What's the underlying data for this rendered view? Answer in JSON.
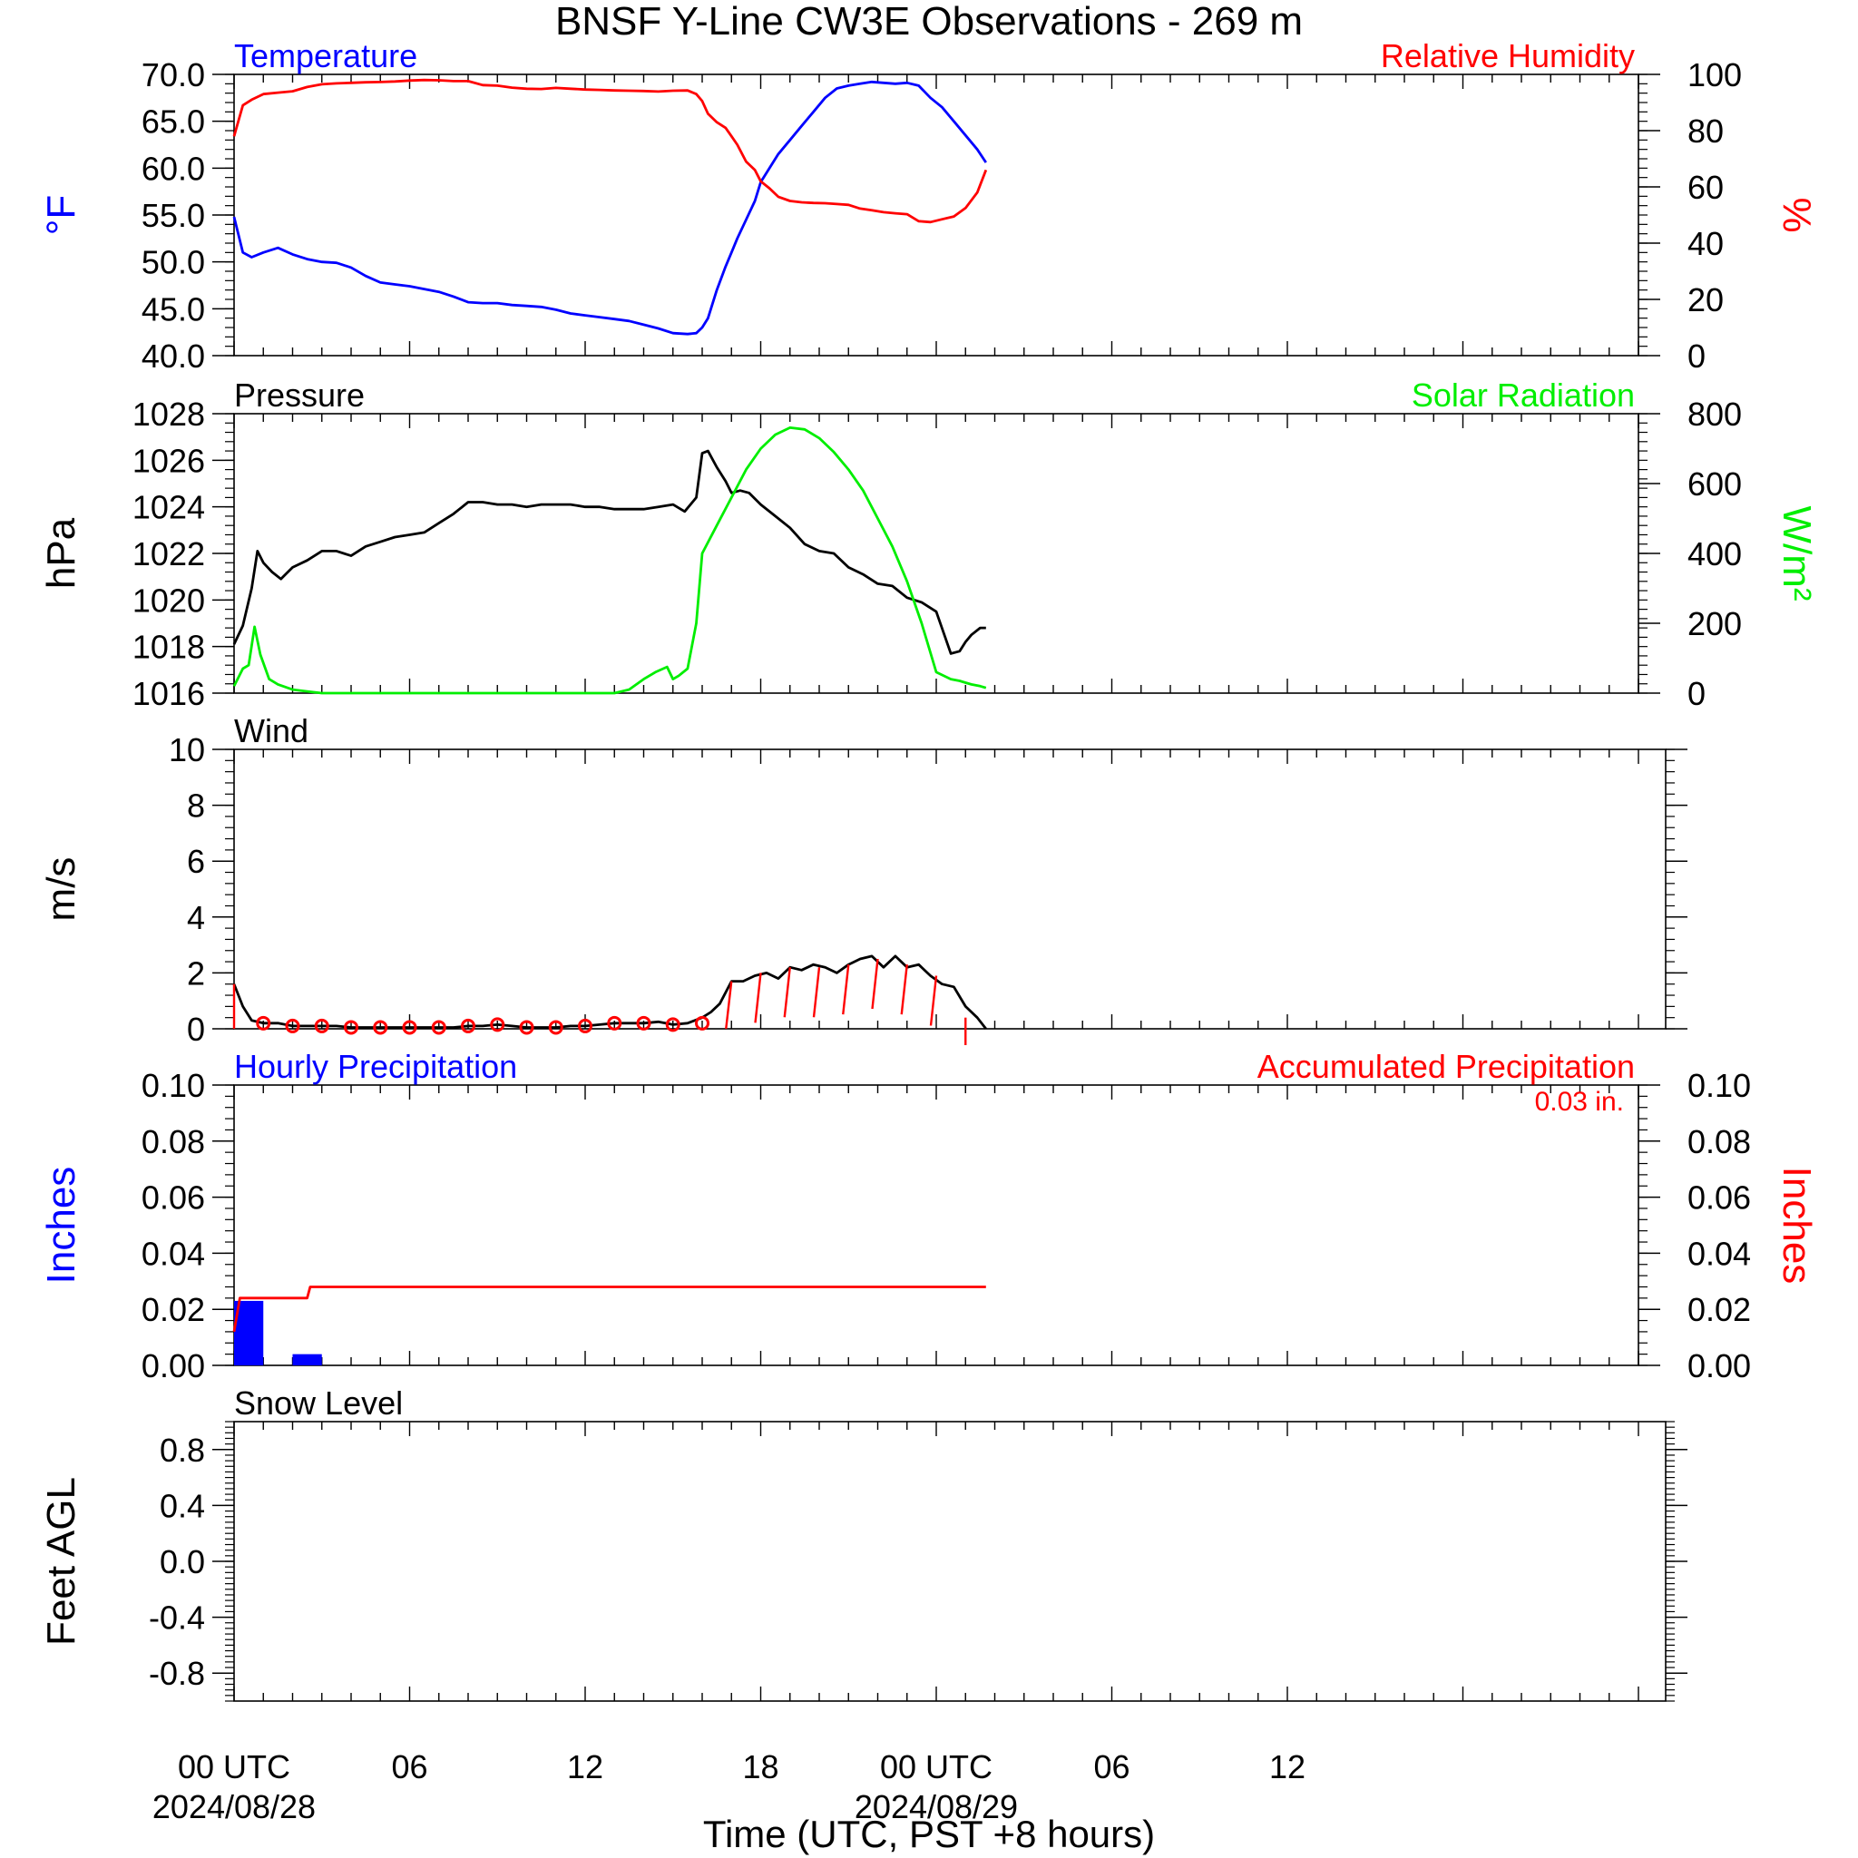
{
  "title": "BNSF Y-Line CW3E Observations - 269 m",
  "colors": {
    "temperature": "#0000ff",
    "humidity": "#ff0000",
    "pressure": "#000000",
    "solar": "#00ee00",
    "wind": "#000000",
    "barb": "#ff0000",
    "hourly_precip": "#0000ff",
    "accum_precip": "#ff0000"
  },
  "x_axis": {
    "label": "Time (UTC, PST +8 hours)",
    "range_hours": [
      0,
      48
    ],
    "ticks": [
      {
        "h": 0,
        "line1": "00 UTC",
        "line2": "2024/08/28"
      },
      {
        "h": 6,
        "line1": "06",
        "line2": ""
      },
      {
        "h": 12,
        "line1": "12",
        "line2": ""
      },
      {
        "h": 18,
        "line1": "18",
        "line2": ""
      },
      {
        "h": 24,
        "line1": "00 UTC",
        "line2": "2024/08/29"
      },
      {
        "h": 30,
        "line1": "06",
        "line2": ""
      },
      {
        "h": 36,
        "line1": "12",
        "line2": ""
      }
    ]
  },
  "chart_data": [
    {
      "panel": "temperature_humidity",
      "type": "line",
      "left_title": "Temperature",
      "right_title": "Relative Humidity",
      "ylabel_left": "°F",
      "ylabel_right": "%",
      "ylim_left": [
        40,
        70
      ],
      "ylim_right": [
        0,
        100
      ],
      "yticks_left": [
        "40.0",
        "45.0",
        "50.0",
        "55.0",
        "60.0",
        "65.0",
        "70.0"
      ],
      "yticks_right": [
        "0",
        "20",
        "40",
        "60",
        "80",
        "100"
      ],
      "series": [
        {
          "name": "Temperature",
          "axis": "left",
          "color_key": "temperature",
          "x": [
            0,
            0.3,
            0.6,
            1,
            1.5,
            2,
            2.5,
            3,
            3.5,
            4,
            4.5,
            5,
            5.5,
            6,
            6.5,
            7,
            7.5,
            8,
            8.5,
            9,
            9.5,
            10,
            10.5,
            11,
            11.5,
            12,
            12.5,
            13,
            13.5,
            14,
            14.5,
            15,
            15.5,
            15.8,
            16,
            16.2,
            16.5,
            16.8,
            17,
            17.2,
            17.5,
            17.8,
            18,
            18.3,
            18.6,
            19,
            19.4,
            19.8,
            20.2,
            20.6,
            21,
            21.4,
            21.8,
            22.2,
            22.6,
            23,
            23.4,
            23.8,
            24.2,
            24.6,
            25,
            25.4,
            25.7
          ],
          "values": [
            54.8,
            51,
            50.5,
            51,
            51.5,
            50.8,
            50.3,
            50,
            49.9,
            49.4,
            48.5,
            47.8,
            47.6,
            47.4,
            47.1,
            46.8,
            46.3,
            45.7,
            45.6,
            45.6,
            45.4,
            45.3,
            45.2,
            44.9,
            44.5,
            44.3,
            44.1,
            43.9,
            43.7,
            43.3,
            42.9,
            42.4,
            42.3,
            42.4,
            43,
            44,
            47,
            49.5,
            51,
            52.5,
            54.5,
            56.5,
            58.5,
            60,
            61.5,
            63,
            64.5,
            66,
            67.5,
            68.5,
            68.8,
            69,
            69.2,
            69.1,
            69,
            69.1,
            68.8,
            67.5,
            66.5,
            65,
            63.5,
            62,
            60.6
          ]
        },
        {
          "name": "Relative Humidity",
          "axis": "right",
          "color_key": "humidity",
          "x": [
            0,
            0.3,
            0.6,
            1,
            1.5,
            2,
            2.5,
            3,
            3.5,
            4,
            4.5,
            5,
            5.5,
            6,
            6.5,
            7,
            7.5,
            8,
            8.5,
            9,
            9.5,
            10,
            10.5,
            11,
            11.5,
            12,
            12.5,
            13,
            13.5,
            14,
            14.5,
            15,
            15.5,
            15.8,
            16,
            16.2,
            16.5,
            16.8,
            17,
            17.2,
            17.5,
            17.8,
            18,
            18.3,
            18.6,
            19,
            19.4,
            19.8,
            20.2,
            20.6,
            21,
            21.4,
            21.8,
            22.2,
            22.6,
            23,
            23.4,
            23.8,
            24.2,
            24.6,
            25,
            25.4,
            25.7
          ],
          "values": [
            78,
            89,
            91,
            93,
            93.5,
            94,
            95.5,
            96.5,
            96.8,
            97,
            97.2,
            97.3,
            97.5,
            97.8,
            98,
            97.9,
            97.6,
            97.6,
            96.2,
            96,
            95.3,
            94.9,
            94.8,
            95.2,
            94.9,
            94.6,
            94.5,
            94.3,
            94.2,
            94.1,
            93.9,
            94.2,
            94.3,
            93,
            90.5,
            86,
            83,
            81,
            78,
            75,
            69,
            66,
            62,
            59.5,
            56.5,
            55,
            54.5,
            54.3,
            54.2,
            53.9,
            53.6,
            52.3,
            51.7,
            51,
            50.6,
            50.3,
            47.8,
            47.5,
            48.5,
            49.5,
            52.5,
            58,
            66
          ]
        }
      ]
    },
    {
      "panel": "pressure_solar",
      "type": "line",
      "left_title": "Pressure",
      "right_title": "Solar Radiation",
      "ylabel_left": "hPa",
      "ylabel_right": "W/m²",
      "ylim_left": [
        1016,
        1028
      ],
      "ylim_right": [
        0,
        800
      ],
      "yticks_left": [
        "1016",
        "1018",
        "1020",
        "1022",
        "1024",
        "1026",
        "1028"
      ],
      "yticks_right": [
        "0",
        "200",
        "400",
        "600",
        "800"
      ],
      "series": [
        {
          "name": "Pressure",
          "axis": "left",
          "color_key": "pressure",
          "x": [
            0,
            0.3,
            0.6,
            0.8,
            1,
            1.3,
            1.6,
            2,
            2.5,
            3,
            3.5,
            4,
            4.5,
            5,
            5.5,
            6,
            6.5,
            7,
            7.5,
            8,
            8.5,
            9,
            9.5,
            10,
            10.5,
            11,
            11.5,
            12,
            12.5,
            13,
            13.5,
            14,
            14.5,
            15,
            15.4,
            15.8,
            16,
            16.2,
            16.5,
            16.8,
            17,
            17.3,
            17.6,
            18,
            18.5,
            19,
            19.5,
            20,
            20.5,
            21,
            21.5,
            22,
            22.5,
            23,
            23.5,
            24,
            24.5,
            24.8,
            25,
            25.2,
            25.5,
            25.7
          ],
          "values": [
            1018.1,
            1018.9,
            1020.5,
            1022.1,
            1021.6,
            1021.2,
            1020.9,
            1021.4,
            1021.7,
            1022.1,
            1022.1,
            1021.9,
            1022.3,
            1022.5,
            1022.7,
            1022.8,
            1022.9,
            1023.3,
            1023.7,
            1024.2,
            1024.2,
            1024.1,
            1024.1,
            1024.0,
            1024.1,
            1024.1,
            1024.1,
            1024.0,
            1024.0,
            1023.9,
            1023.9,
            1023.9,
            1024.0,
            1024.1,
            1023.8,
            1024.4,
            1026.3,
            1026.4,
            1025.7,
            1025.1,
            1024.6,
            1024.7,
            1024.6,
            1024.1,
            1023.6,
            1023.1,
            1022.4,
            1022.1,
            1022.0,
            1021.4,
            1021.1,
            1020.7,
            1020.6,
            1020.1,
            1019.9,
            1019.5,
            1017.7,
            1017.8,
            1018.2,
            1018.5,
            1018.8,
            1018.8
          ]
        },
        {
          "name": "Solar Radiation",
          "axis": "right",
          "color_key": "solar",
          "x": [
            0,
            0.3,
            0.5,
            0.7,
            0.9,
            1.2,
            1.5,
            2,
            2.5,
            3,
            4,
            5,
            6,
            7,
            8,
            9,
            10,
            11,
            12,
            13,
            13.5,
            14,
            14.4,
            14.8,
            15,
            15.2,
            15.5,
            15.8,
            16,
            16.5,
            17,
            17.5,
            18,
            18.5,
            19,
            19.5,
            20,
            20.5,
            21,
            21.5,
            22,
            22.5,
            23,
            23.5,
            24,
            24.5,
            24.8,
            25,
            25.2,
            25.5,
            25.7
          ],
          "values": [
            20,
            70,
            80,
            190,
            110,
            40,
            25,
            10,
            5,
            0,
            0,
            0,
            0,
            0,
            0,
            0,
            0,
            0,
            0,
            0,
            10,
            40,
            60,
            75,
            40,
            50,
            70,
            200,
            400,
            480,
            560,
            640,
            700,
            740,
            760,
            755,
            730,
            690,
            640,
            580,
            500,
            420,
            320,
            200,
            60,
            40,
            35,
            30,
            25,
            20,
            15
          ]
        }
      ]
    },
    {
      "panel": "wind",
      "type": "line",
      "left_title": "Wind",
      "ylabel_left": "m/s",
      "ylim_left": [
        0,
        10
      ],
      "yticks_left": [
        "0",
        "2",
        "4",
        "6",
        "8",
        "10"
      ],
      "series": [
        {
          "name": "Wind",
          "axis": "left",
          "color_key": "wind",
          "x": [
            0,
            0.3,
            0.6,
            1,
            1.5,
            2,
            2.5,
            3,
            3.5,
            4,
            4.5,
            5,
            5.5,
            6,
            6.5,
            7,
            7.5,
            8,
            8.5,
            9,
            9.5,
            10,
            10.5,
            11,
            11.5,
            12,
            12.5,
            13,
            13.5,
            14,
            14.5,
            15,
            15.5,
            16,
            16.3,
            16.6,
            17,
            17.4,
            17.8,
            18.2,
            18.6,
            19,
            19.4,
            19.8,
            20.2,
            20.6,
            21,
            21.4,
            21.8,
            22.2,
            22.6,
            23,
            23.4,
            23.8,
            24.2,
            24.6,
            25,
            25.4,
            25.7
          ],
          "values": [
            1.6,
            0.8,
            0.3,
            0.2,
            0.2,
            0.1,
            0.1,
            0.1,
            0.1,
            0.05,
            0.05,
            0.05,
            0.05,
            0.05,
            0.05,
            0.05,
            0.05,
            0.1,
            0.1,
            0.15,
            0.1,
            0.05,
            0.05,
            0.05,
            0.1,
            0.1,
            0.15,
            0.2,
            0.2,
            0.2,
            0.25,
            0.15,
            0.2,
            0.4,
            0.6,
            0.9,
            1.7,
            1.7,
            1.9,
            2.0,
            1.8,
            2.2,
            2.1,
            2.3,
            2.2,
            2.0,
            2.3,
            2.5,
            2.6,
            2.2,
            2.6,
            2.2,
            2.3,
            1.9,
            1.6,
            1.5,
            0.8,
            0.4,
            0.0
          ]
        },
        {
          "name": "Calm",
          "color_key": "barb",
          "marker": "circle",
          "x": [
            1,
            2,
            3,
            4,
            5,
            6,
            7,
            8,
            9,
            10,
            11,
            12,
            13,
            14,
            15,
            16
          ],
          "values": [
            0.2,
            0.1,
            0.1,
            0.05,
            0.05,
            0.05,
            0.05,
            0.1,
            0.15,
            0.05,
            0.05,
            0.1,
            0.2,
            0.2,
            0.15,
            0.2
          ]
        },
        {
          "name": "Barbs",
          "color_key": "barb",
          "marker": "barb",
          "x": [
            0,
            17,
            18,
            19,
            20,
            21,
            22,
            23,
            24,
            25
          ],
          "values": [
            1.6,
            1.7,
            2.0,
            2.2,
            2.2,
            2.3,
            2.5,
            2.3,
            1.9,
            0.4
          ]
        }
      ]
    },
    {
      "panel": "precipitation",
      "type": "bar",
      "left_title": "Hourly Precipitation",
      "right_title": "Accumulated Precipitation",
      "accum_total": "0.03 in.",
      "ylabel_left": "Inches",
      "ylabel_right": "Inches",
      "ylim_left": [
        0,
        0.1
      ],
      "ylim_right": [
        0,
        0.1
      ],
      "yticks_left": [
        "0.00",
        "0.02",
        "0.04",
        "0.06",
        "0.08",
        "0.10"
      ],
      "yticks_right": [
        "0.00",
        "0.02",
        "0.04",
        "0.06",
        "0.08",
        "0.10"
      ],
      "series": [
        {
          "name": "Hourly Precipitation",
          "type": "bar",
          "color_key": "hourly_precip",
          "x": [
            0,
            2
          ],
          "values": [
            0.023,
            0.004
          ]
        },
        {
          "name": "Accumulated Precipitation",
          "type": "line",
          "color_key": "accum_precip",
          "x": [
            0,
            0.2,
            1,
            2,
            2.5,
            2.6,
            25.7
          ],
          "values": [
            0.012,
            0.024,
            0.024,
            0.024,
            0.024,
            0.028,
            0.028
          ]
        }
      ]
    },
    {
      "panel": "snow_level",
      "type": "line",
      "left_title": "Snow Level",
      "ylabel_left": "Feet AGL",
      "ylim_left": [
        -1,
        1
      ],
      "yticks_left": [
        "-0.8",
        "-0.4",
        "0.0",
        "0.4",
        "0.8"
      ],
      "ytick_values": [
        -0.8,
        -0.4,
        0,
        0.4,
        0.8
      ],
      "series": []
    }
  ]
}
